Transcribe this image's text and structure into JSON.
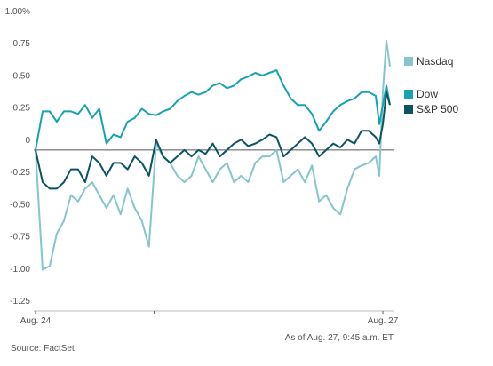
{
  "chart_data": {
    "type": "line",
    "x": [
      0,
      2,
      4,
      6,
      8,
      10,
      12,
      14,
      16,
      18,
      20,
      22,
      24,
      26,
      28,
      30,
      32,
      34,
      36,
      38,
      40,
      42,
      44,
      46,
      48,
      50,
      52,
      54,
      56,
      58,
      60,
      62,
      64,
      66,
      68,
      70,
      72,
      74,
      76,
      78,
      80,
      82,
      84,
      86,
      88,
      90,
      92,
      94,
      96,
      97,
      98,
      99,
      100
    ],
    "xlim": [
      0,
      101
    ],
    "xticks": [
      {
        "value": 0,
        "label": "Aug. 24"
      },
      {
        "value": 33.5,
        "label": null
      },
      {
        "value": 98,
        "label": "Aug. 27"
      }
    ],
    "ylim": [
      -1.25,
      1.0
    ],
    "yticks": [
      {
        "value": 1,
        "label": "1.00%"
      },
      0.75,
      {
        "value": 0.5,
        "label": "0.50"
      },
      0.25,
      0,
      -0.25,
      {
        "value": -0.5,
        "label": "-0.50"
      },
      -0.75,
      {
        "value": -1,
        "label": "-1.00"
      },
      -1.25
    ],
    "zero_line": true,
    "series": [
      {
        "name": "Nasdaq",
        "color": "#86c5cc",
        "values": [
          0,
          -0.93,
          -0.9,
          -0.65,
          -0.55,
          -0.35,
          -0.4,
          -0.3,
          -0.25,
          -0.35,
          -0.45,
          -0.35,
          -0.5,
          -0.3,
          -0.45,
          -0.55,
          -0.75,
          0.05,
          -0.05,
          -0.1,
          -0.2,
          -0.25,
          -0.2,
          -0.05,
          -0.15,
          -0.25,
          -0.15,
          -0.1,
          -0.25,
          -0.2,
          -0.25,
          -0.1,
          -0.05,
          -0.05,
          0,
          -0.25,
          -0.2,
          -0.15,
          -0.25,
          -0.12,
          -0.4,
          -0.35,
          -0.45,
          -0.5,
          -0.3,
          -0.15,
          -0.12,
          -0.1,
          -0.05,
          -0.2,
          0.45,
          0.85,
          0.65
        ]
      },
      {
        "name": "Dow",
        "color": "#17a2b2",
        "values": [
          0,
          0.3,
          0.3,
          0.22,
          0.3,
          0.3,
          0.28,
          0.35,
          0.25,
          0.32,
          0.05,
          0.12,
          0.1,
          0.22,
          0.25,
          0.32,
          0.28,
          0.27,
          0.3,
          0.32,
          0.38,
          0.42,
          0.45,
          0.43,
          0.45,
          0.5,
          0.52,
          0.48,
          0.5,
          0.55,
          0.57,
          0.6,
          0.58,
          0.6,
          0.62,
          0.5,
          0.4,
          0.35,
          0.35,
          0.28,
          0.15,
          0.22,
          0.3,
          0.35,
          0.38,
          0.4,
          0.45,
          0.45,
          0.42,
          0.2,
          0.35,
          0.5,
          0.35
        ]
      },
      {
        "name": "S&P 500",
        "color": "#0c5560",
        "values": [
          0,
          -0.25,
          -0.3,
          -0.3,
          -0.25,
          -0.15,
          -0.15,
          -0.25,
          -0.05,
          -0.1,
          -0.2,
          -0.1,
          -0.1,
          -0.15,
          -0.05,
          -0.1,
          -0.2,
          0.08,
          -0.05,
          -0.1,
          -0.05,
          0,
          -0.05,
          0,
          -0.03,
          0.05,
          -0.05,
          0,
          0.05,
          0.08,
          0.03,
          0.05,
          0.08,
          0.12,
          0.1,
          -0.05,
          0,
          0.05,
          0.1,
          0.05,
          -0.05,
          0,
          0.05,
          0.02,
          0.08,
          0.05,
          0.15,
          0.15,
          0.1,
          0.05,
          0.2,
          0.45,
          0.35
        ]
      }
    ],
    "note": "As of Aug. 27, 9:45 a.m. ET",
    "source": "Source: FactSet"
  }
}
